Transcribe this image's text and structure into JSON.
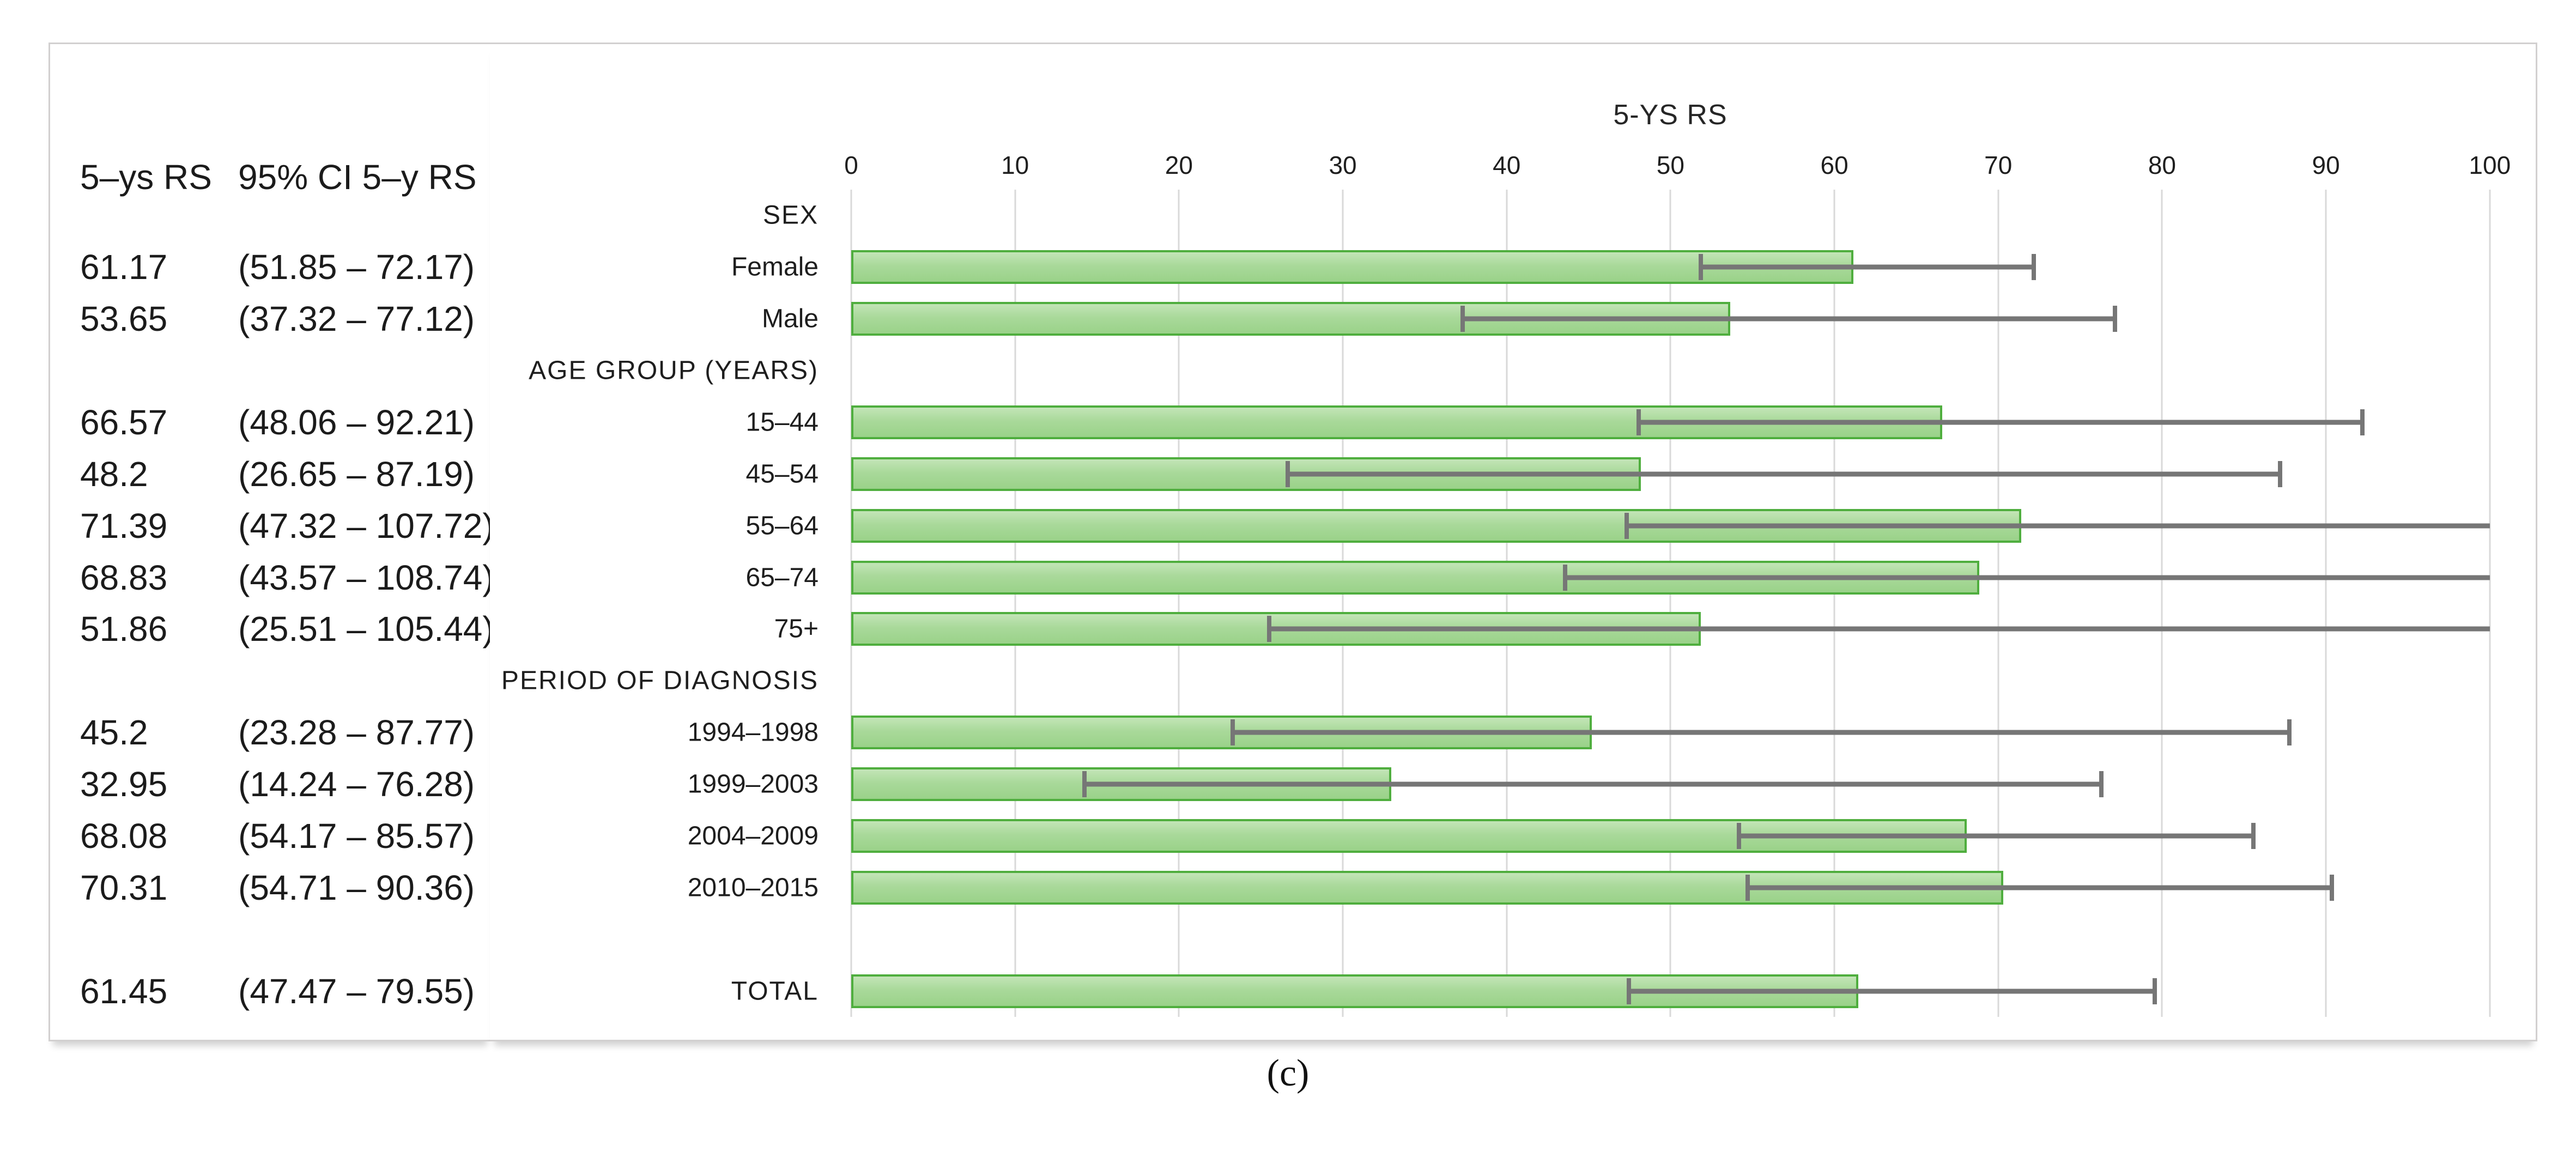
{
  "figure": {
    "caption": "(c)",
    "table": {
      "col1_header": "5–ys RS",
      "col2_header": "95% CI 5–y RS"
    }
  },
  "chart_data": {
    "type": "bar",
    "orientation": "horizontal",
    "title": "5-YS RS",
    "xlabel": "",
    "ylabel": "",
    "xlim": [
      0,
      100
    ],
    "x_ticks": [
      0,
      10,
      20,
      30,
      40,
      50,
      60,
      70,
      80,
      90,
      100
    ],
    "grid": true,
    "axis_position": "top",
    "bar_fill_color": "#a9d99a",
    "bar_border_color": "#4fae3e",
    "error_bar_color": "#767676",
    "gridline_color": "#d9d9d9",
    "rows": [
      {
        "type": "header",
        "label": "SEX"
      },
      {
        "type": "bar",
        "label": "Female",
        "value": 61.17,
        "ci_low": 51.85,
        "ci_high": 72.17,
        "rs_text": "61.17",
        "ci_text": "(51.85 – 72.17)"
      },
      {
        "type": "bar",
        "label": "Male",
        "value": 53.65,
        "ci_low": 37.32,
        "ci_high": 77.12,
        "rs_text": "53.65",
        "ci_text": "(37.32 – 77.12)"
      },
      {
        "type": "header",
        "label": "AGE GROUP (YEARS)"
      },
      {
        "type": "bar",
        "label": "15–44",
        "value": 66.57,
        "ci_low": 48.06,
        "ci_high": 92.21,
        "rs_text": "66.57",
        "ci_text": "(48.06 – 92.21)"
      },
      {
        "type": "bar",
        "label": "45–54",
        "value": 48.2,
        "ci_low": 26.65,
        "ci_high": 87.19,
        "rs_text": "48.2",
        "ci_text": "(26.65 – 87.19)"
      },
      {
        "type": "bar",
        "label": "55–64",
        "value": 71.39,
        "ci_low": 47.32,
        "ci_high": 107.72,
        "rs_text": "71.39",
        "ci_text": "(47.32 – 107.72)"
      },
      {
        "type": "bar",
        "label": "65–74",
        "value": 68.83,
        "ci_low": 43.57,
        "ci_high": 108.74,
        "rs_text": "68.83",
        "ci_text": "(43.57 – 108.74)"
      },
      {
        "type": "bar",
        "label": "75+",
        "value": 51.86,
        "ci_low": 25.51,
        "ci_high": 105.44,
        "rs_text": "51.86",
        "ci_text": "(25.51 – 105.44)"
      },
      {
        "type": "header",
        "label": "PERIOD OF DIAGNOSIS"
      },
      {
        "type": "bar",
        "label": "1994–1998",
        "value": 45.2,
        "ci_low": 23.28,
        "ci_high": 87.77,
        "rs_text": "45.2",
        "ci_text": "(23.28 – 87.77)"
      },
      {
        "type": "bar",
        "label": "1999–2003",
        "value": 32.95,
        "ci_low": 14.24,
        "ci_high": 76.28,
        "rs_text": "32.95",
        "ci_text": "(14.24 – 76.28)"
      },
      {
        "type": "bar",
        "label": "2004–2009",
        "value": 68.08,
        "ci_low": 54.17,
        "ci_high": 85.57,
        "rs_text": "68.08",
        "ci_text": "(54.17 – 85.57)"
      },
      {
        "type": "bar",
        "label": "2010–2015",
        "value": 70.31,
        "ci_low": 54.71,
        "ci_high": 90.36,
        "rs_text": "70.31",
        "ci_text": "(54.71 – 90.36)"
      },
      {
        "type": "spacer"
      },
      {
        "type": "bar",
        "label": "TOTAL",
        "value": 61.45,
        "ci_low": 47.47,
        "ci_high": 79.55,
        "rs_text": "61.45",
        "ci_text": "(47.47 – 79.55)"
      }
    ]
  }
}
